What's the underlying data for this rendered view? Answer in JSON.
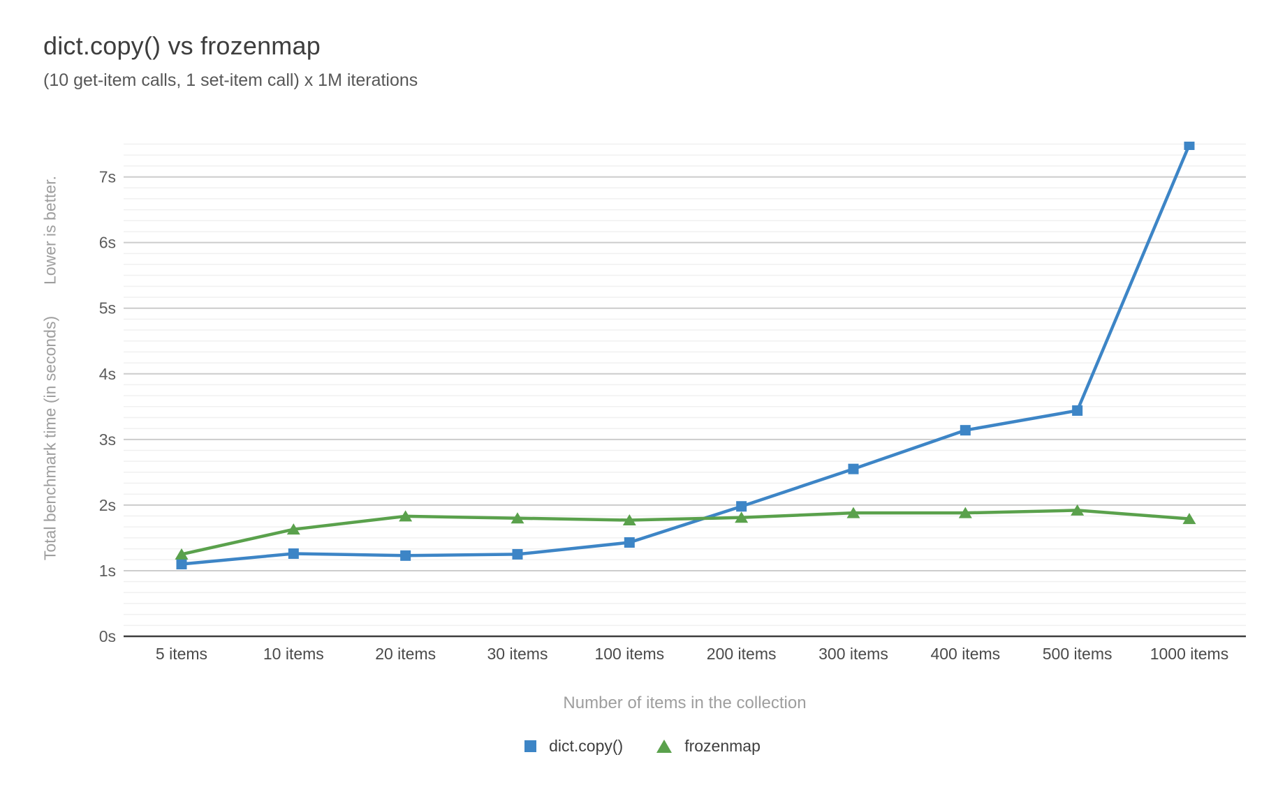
{
  "chart_data": {
    "type": "line",
    "title": "dict.copy() vs frozenmap",
    "subtitle": "(10 get-item calls, 1 set-item call) x 1M iterations",
    "xlabel": "Number of items in the collection",
    "ylabel": "Total benchmark time (in seconds)",
    "ylabel_note": "Lower is better.",
    "categories": [
      "5 items",
      "10 items",
      "20 items",
      "30 items",
      "100 items",
      "200 items",
      "300 items",
      "400 items",
      "500 items",
      "1000 items"
    ],
    "series": [
      {
        "name": "dict.copy()",
        "marker": "square",
        "color": "#3d85c6",
        "values": [
          1.1,
          1.26,
          1.23,
          1.25,
          1.43,
          1.98,
          2.55,
          3.14,
          3.44,
          7.49
        ]
      },
      {
        "name": "frozenmap",
        "marker": "triangle",
        "color": "#5aa14c",
        "values": [
          1.25,
          1.63,
          1.83,
          1.8,
          1.77,
          1.81,
          1.88,
          1.88,
          1.92,
          1.79
        ]
      }
    ],
    "y_ticks": [
      "0s",
      "1s",
      "2s",
      "3s",
      "4s",
      "5s",
      "6s",
      "7s"
    ],
    "ylim": [
      0,
      7.5
    ],
    "grid": "horizontal major lines every 1s with light minor lines, y-axis only",
    "legend_position": "bottom"
  }
}
